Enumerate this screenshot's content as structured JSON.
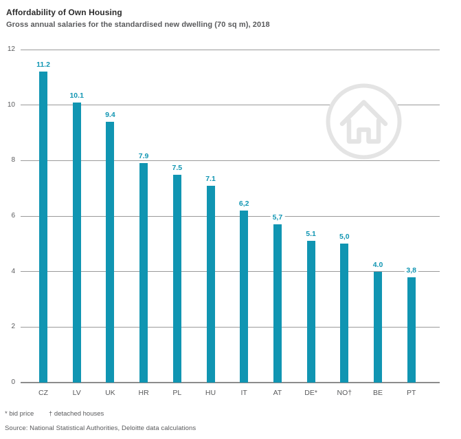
{
  "header": {
    "title": "Affordability of Own Housing",
    "subtitle": "Gross annual salaries for the standardised new dwelling (70 sq m), 2018"
  },
  "chart_data": {
    "type": "bar",
    "title": "Affordability of Own Housing",
    "subtitle": "Gross annual salaries for the standardised new dwelling (70 sq m), 2018",
    "categories": [
      "CZ",
      "LV",
      "UK",
      "HR",
      "PL",
      "HU",
      "IT",
      "AT",
      "DE*",
      "NO†",
      "BE",
      "PT"
    ],
    "values": [
      11.2,
      10.1,
      9.4,
      7.9,
      7.5,
      7.1,
      6.2,
      5.7,
      5.1,
      5.0,
      4.0,
      3.8
    ],
    "value_labels": [
      "11.2",
      "10.1",
      "9.4",
      "7.9",
      "7.5",
      "7.1",
      "6,2",
      "5,7",
      "5.1",
      "5,0",
      "4.0",
      "3,8"
    ],
    "xlabel": "",
    "ylabel": "",
    "ylim": [
      0,
      12
    ],
    "yticks": [
      0,
      2,
      4,
      6,
      8,
      10,
      12
    ],
    "grid": "horizontal",
    "legend_position": "none",
    "bar_color": "#1095b2",
    "value_label_color": "#1095b2",
    "gridline_color": "#9a9a9a",
    "watermark_icon": "house-icon",
    "watermark_color": "#e4e4e4"
  },
  "footnotes": {
    "bid_price": "* bid price",
    "detached_houses": "† detached houses"
  },
  "footer": {
    "source": "Source: National Statistical Authorities, Deloitte data calculations"
  }
}
